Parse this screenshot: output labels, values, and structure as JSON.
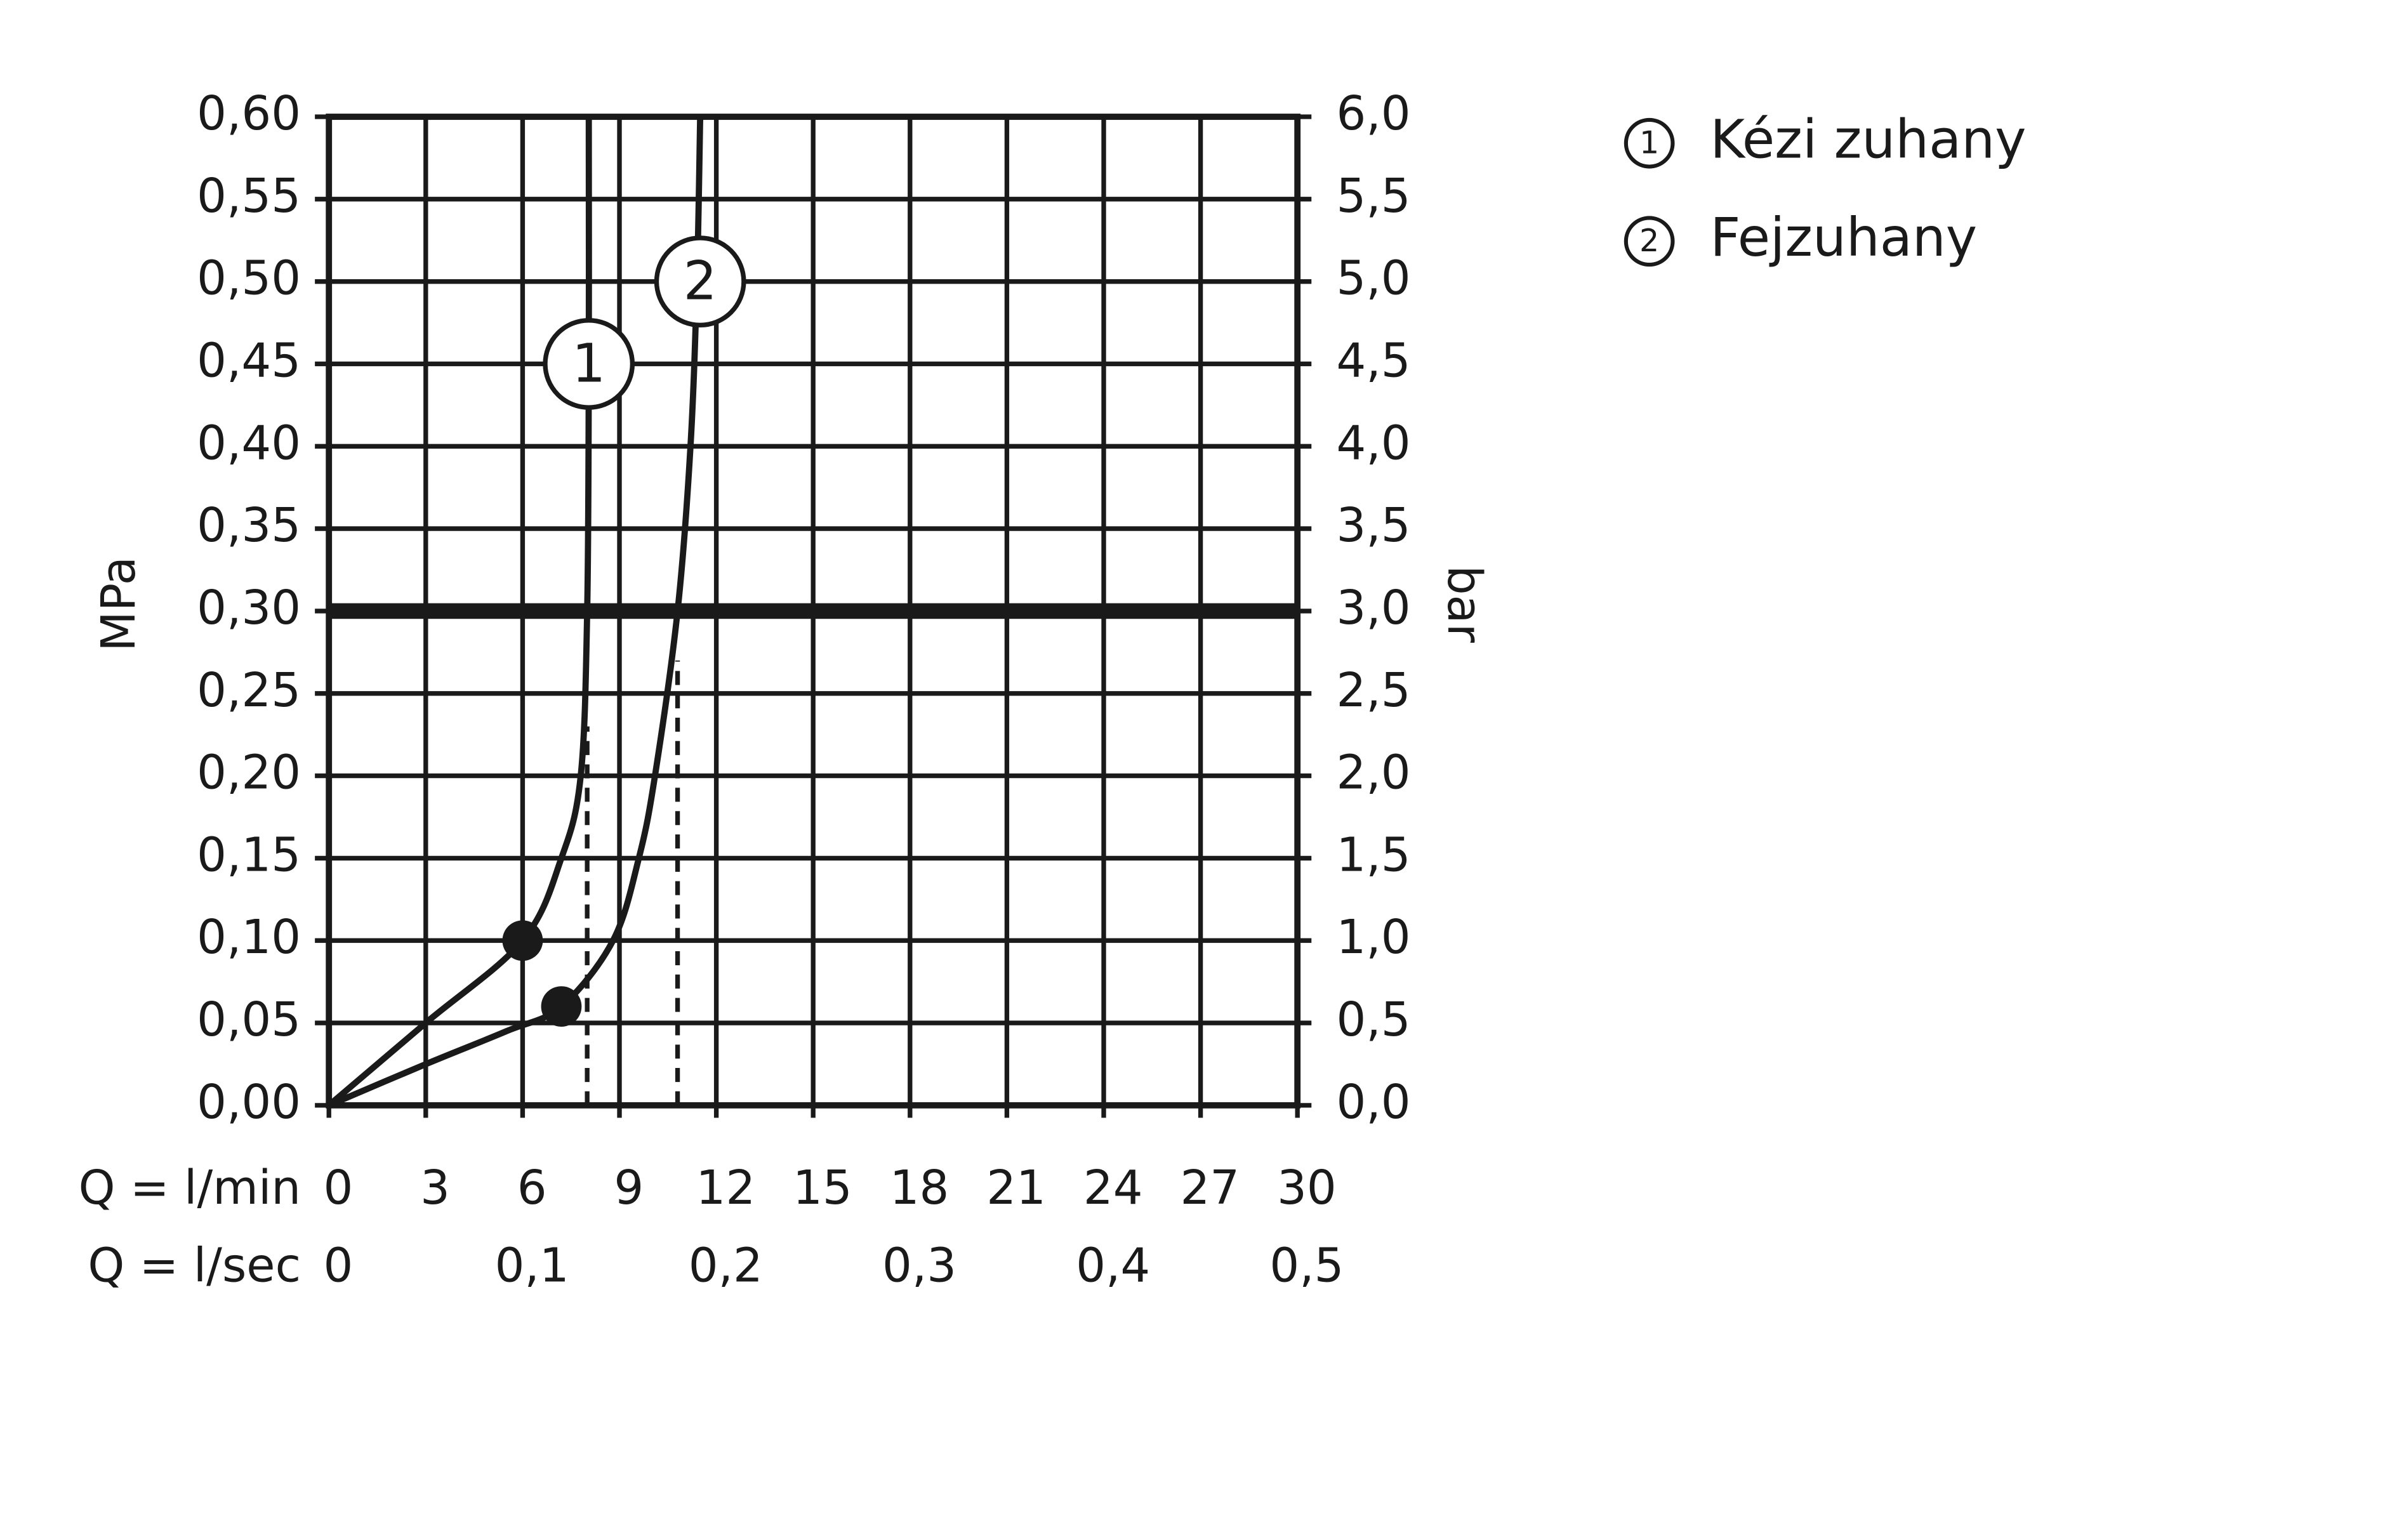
{
  "chart_data": {
    "type": "line",
    "x_label": "Q = l/min",
    "x2_label": "Q = l/sec",
    "y_label": "MPa",
    "y2_label": "bar",
    "xlim": [
      0,
      30
    ],
    "xticks": [
      0,
      3,
      6,
      9,
      12,
      15,
      18,
      21,
      24,
      27,
      30
    ],
    "x2lim": [
      0,
      0.5
    ],
    "x2ticks": [
      0,
      {
        "value": 0.1,
        "label": "0,1"
      },
      {
        "value": 0.2,
        "label": "0,2"
      },
      {
        "value": 0.3,
        "label": "0,3"
      },
      {
        "value": 0.4,
        "label": "0,4"
      },
      {
        "value": 0.5,
        "label": "0,5"
      }
    ],
    "ylim": [
      0,
      0.6
    ],
    "yticks": [
      {
        "value": 0,
        "label": "0,00"
      },
      {
        "value": 0.05,
        "label": "0,05"
      },
      {
        "value": 0.1,
        "label": "0,10"
      },
      {
        "value": 0.15,
        "label": "0,15"
      },
      {
        "value": 0.2,
        "label": "0,20"
      },
      {
        "value": 0.25,
        "label": "0,25"
      },
      {
        "value": 0.3,
        "label": "0,30"
      },
      {
        "value": 0.35,
        "label": "0,35"
      },
      {
        "value": 0.4,
        "label": "0,40"
      },
      {
        "value": 0.45,
        "label": "0,45"
      },
      {
        "value": 0.5,
        "label": "0,50"
      },
      {
        "value": 0.55,
        "label": "0,55"
      },
      {
        "value": 0.6,
        "label": "0,60"
      }
    ],
    "y2lim": [
      0,
      6
    ],
    "y2ticks": [
      {
        "value": 0,
        "label": "0,0"
      },
      {
        "value": 0.5,
        "label": "0,5"
      },
      {
        "value": 1,
        "label": "1,0"
      },
      {
        "value": 1.5,
        "label": "1,5"
      },
      {
        "value": 2,
        "label": "2,0"
      },
      {
        "value": 2.5,
        "label": "2,5"
      },
      {
        "value": 3,
        "label": "3,0"
      },
      {
        "value": 3.5,
        "label": "3,5"
      },
      {
        "value": 4,
        "label": "4,0"
      },
      {
        "value": 4.5,
        "label": "4,5"
      },
      {
        "value": 5,
        "label": "5,0"
      },
      {
        "value": 5.5,
        "label": "5,5"
      },
      {
        "value": 6,
        "label": "6,0"
      }
    ],
    "grid": true,
    "reference_line": 0.3,
    "series": [
      {
        "name": "Kézi zuhany",
        "label": "1",
        "color": "#1a1a1a",
        "x": [
          0,
          3,
          6,
          7.2,
          7.8,
          8.0,
          8.05,
          8.05
        ],
        "values": [
          0,
          0.05,
          0.1,
          0.15,
          0.2,
          0.3,
          0.45,
          0.6
        ],
        "label_at": {
          "x": 8.05,
          "y": 0.45
        },
        "marker": {
          "x": 6,
          "y": 0.1
        },
        "drop_line": {
          "x": 8.0,
          "y": 0.23
        }
      },
      {
        "name": "Fejzuhany",
        "label": "2",
        "color": "#1a1a1a",
        "x": [
          0,
          3,
          5.5,
          7.2,
          8.8,
          9.6,
          10.1,
          10.8,
          11.2,
          11.4,
          11.5
        ],
        "values": [
          0,
          0.025,
          0.045,
          0.06,
          0.1,
          0.15,
          0.2,
          0.3,
          0.4,
          0.5,
          0.6
        ],
        "label_at": {
          "x": 11.5,
          "y": 0.5
        },
        "marker": {
          "x": 7.2,
          "y": 0.06
        },
        "drop_line": {
          "x": 10.8,
          "y": 0.27
        }
      }
    ]
  }
}
